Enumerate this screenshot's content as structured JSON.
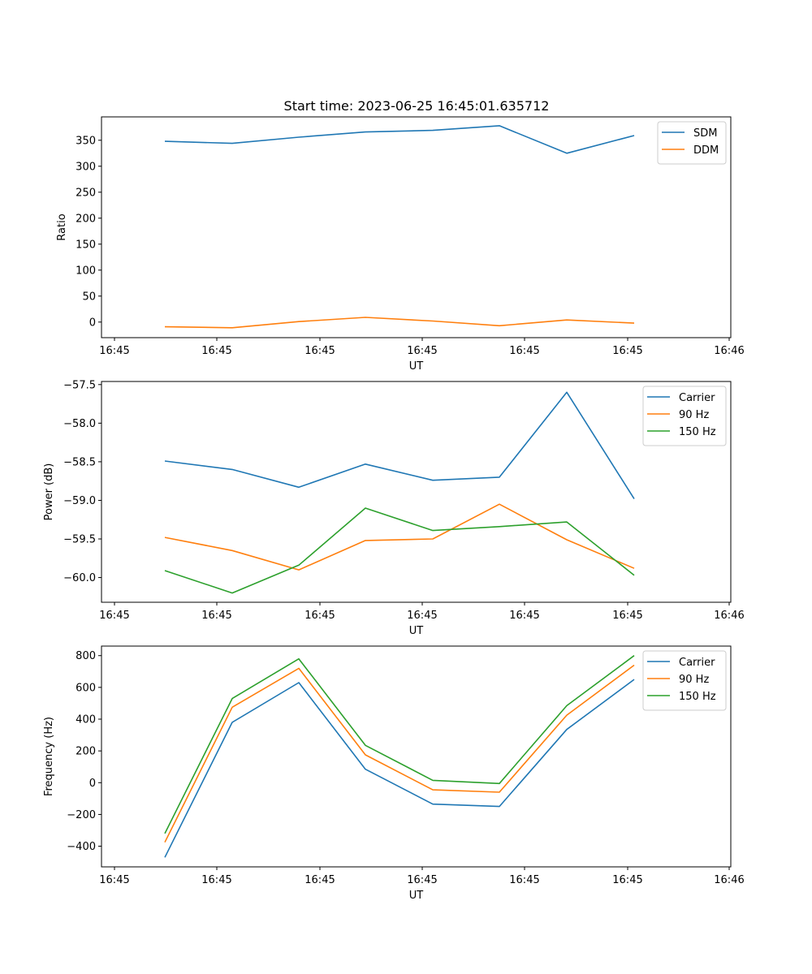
{
  "title": "Start time: 2023-06-25 16:45:01.635712",
  "chart_data": [
    {
      "type": "line",
      "xlabel": "UT",
      "ylabel": "Ratio",
      "x_tick_labels": [
        "16:45",
        "16:45",
        "16:45",
        "16:45",
        "16:45",
        "16:45",
        "16:46"
      ],
      "ylim": [
        -30,
        395
      ],
      "y_ticks": [
        0,
        50,
        100,
        150,
        200,
        250,
        300,
        350
      ],
      "legend_position": "top-right",
      "series": [
        {
          "name": "SDM",
          "color": "#1f77b4",
          "values": [
            348,
            344,
            356,
            366,
            369,
            378,
            325,
            359
          ]
        },
        {
          "name": "DDM",
          "color": "#ff7f0e",
          "values": [
            -9,
            -11,
            1,
            9,
            2,
            -7,
            4,
            -2
          ]
        }
      ]
    },
    {
      "type": "line",
      "xlabel": "UT",
      "ylabel": "Power (dB)",
      "x_tick_labels": [
        "16:45",
        "16:45",
        "16:45",
        "16:45",
        "16:45",
        "16:45",
        "16:46"
      ],
      "ylim": [
        -60.32,
        -57.46
      ],
      "y_ticks": [
        -60.0,
        -59.5,
        -59.0,
        -58.5,
        -58.0,
        -57.5
      ],
      "legend_position": "top-right",
      "series": [
        {
          "name": "Carrier",
          "color": "#1f77b4",
          "values": [
            -58.49,
            -58.6,
            -58.83,
            -58.53,
            -58.74,
            -58.7,
            -57.6,
            -58.98
          ]
        },
        {
          "name": "90 Hz",
          "color": "#ff7f0e",
          "values": [
            -59.48,
            -59.65,
            -59.9,
            -59.52,
            -59.5,
            -59.05,
            -59.51,
            -59.88
          ]
        },
        {
          "name": "150 Hz",
          "color": "#2ca02c",
          "values": [
            -59.91,
            -60.2,
            -59.84,
            -59.1,
            -59.39,
            -59.34,
            -59.28,
            -59.97
          ]
        }
      ]
    },
    {
      "type": "line",
      "xlabel": "UT",
      "ylabel": "Frequency (Hz)",
      "x_tick_labels": [
        "16:45",
        "16:45",
        "16:45",
        "16:45",
        "16:45",
        "16:45",
        "16:46"
      ],
      "ylim": [
        -530,
        860
      ],
      "y_ticks": [
        -400,
        -200,
        0,
        200,
        400,
        600,
        800
      ],
      "legend_position": "top-right",
      "series": [
        {
          "name": "Carrier",
          "color": "#1f77b4",
          "values": [
            -470,
            380,
            630,
            85,
            -135,
            -150,
            335,
            650
          ]
        },
        {
          "name": "90 Hz",
          "color": "#ff7f0e",
          "values": [
            -375,
            475,
            720,
            175,
            -45,
            -60,
            425,
            740
          ]
        },
        {
          "name": "150 Hz",
          "color": "#2ca02c",
          "values": [
            -320,
            530,
            780,
            235,
            15,
            -5,
            485,
            800
          ]
        }
      ]
    }
  ]
}
